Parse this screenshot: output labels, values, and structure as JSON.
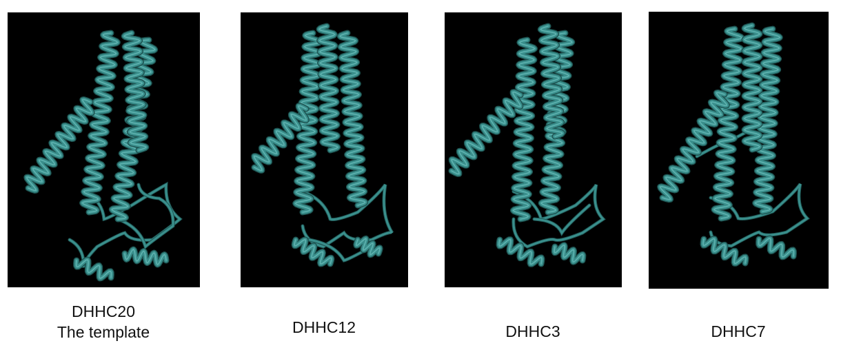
{
  "ribbon_color": "#3a8f8c",
  "ribbon_highlight": "#6fc2bf",
  "ribbon_shadow": "#1e5452",
  "panels": [
    {
      "label_line1": "DHHC20",
      "label_line2": "The template"
    },
    {
      "label_line1": "DHHC12"
    },
    {
      "label_line1": "DHHC3"
    },
    {
      "label_line1": "DHHC7"
    }
  ]
}
